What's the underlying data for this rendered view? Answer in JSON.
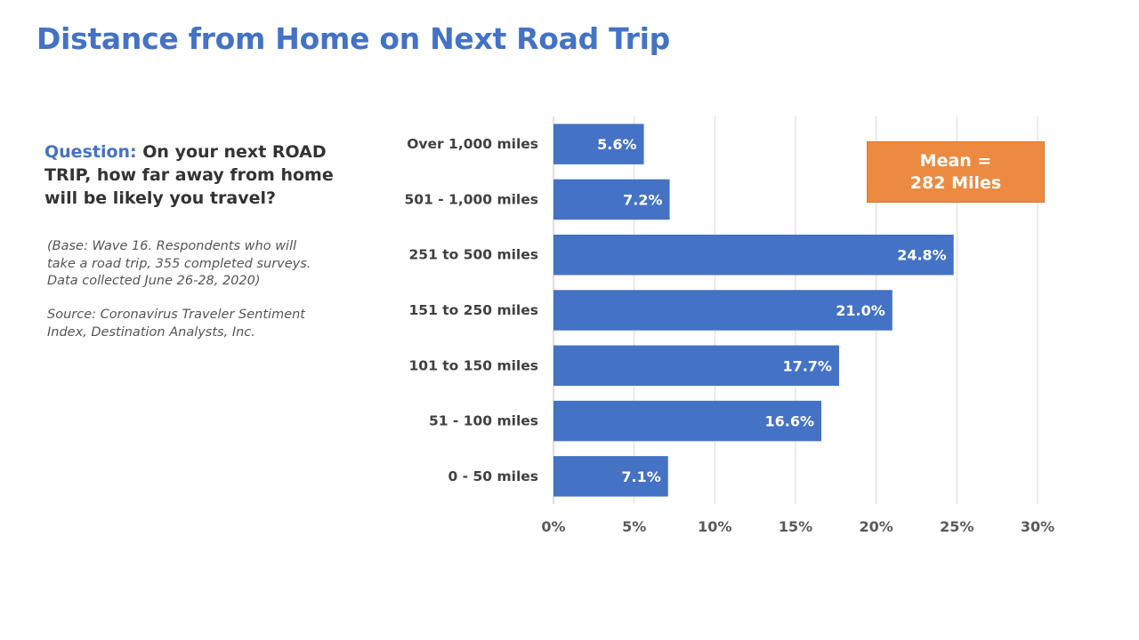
{
  "slide": {
    "title": "Distance from Home on Next Road Trip"
  },
  "question": {
    "label": "Question:",
    "text": "On your next ROAD TRIP, how far away from home will be likely you travel?"
  },
  "notes": {
    "base": "(Base: Wave 16. Respondents who will take a road trip, 355 completed surveys. Data collected June 26-28, 2020)",
    "source": "Source: Coronavirus Traveler Sentiment Index, Destination Analysts, Inc."
  },
  "callout": {
    "line1": "Mean =",
    "line2": "282 Miles"
  },
  "colors": {
    "bar": "#4472c4",
    "title": "#4472c4",
    "callout": "#ed8a42"
  },
  "chart_data": {
    "type": "bar",
    "orientation": "horizontal",
    "categories": [
      "Over 1,000 miles",
      "501 - 1,000 miles",
      "251 to 500 miles",
      "151 to 250 miles",
      "101 to 150 miles",
      "51 - 100 miles",
      "0 - 50 miles"
    ],
    "values": [
      5.6,
      7.2,
      24.8,
      21.0,
      17.7,
      16.6,
      7.1
    ],
    "data_labels": [
      "5.6%",
      "7.2%",
      "24.8%",
      "21.0%",
      "17.7%",
      "16.6%",
      "7.1%"
    ],
    "xlim": [
      0,
      30
    ],
    "x_ticks": [
      0,
      5,
      10,
      15,
      20,
      25,
      30
    ],
    "x_tick_labels": [
      "0%",
      "5%",
      "10%",
      "15%",
      "20%",
      "25%",
      "30%"
    ],
    "grid": true,
    "legend": "none"
  }
}
